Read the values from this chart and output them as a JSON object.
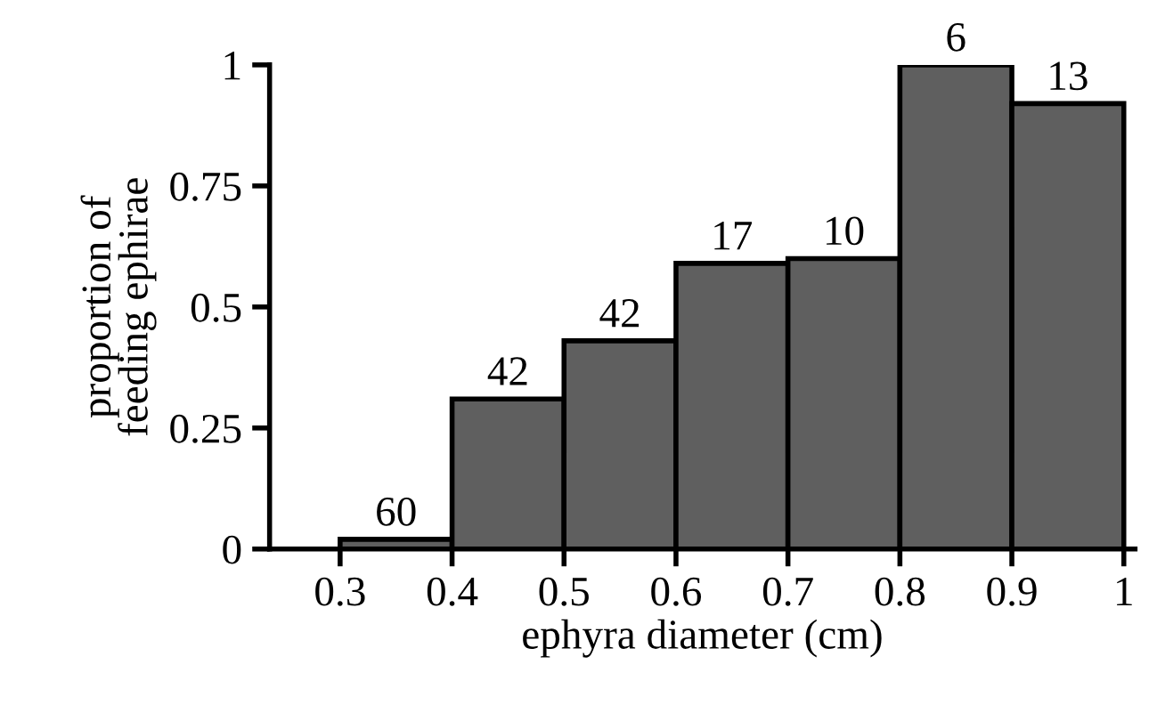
{
  "chart_data": {
    "type": "histogram",
    "xlabel": "ephyra diameter (cm)",
    "ylabel": "proportion of\nfeeding ephirae",
    "bins": [
      0.3,
      0.4,
      0.5,
      0.6,
      0.7,
      0.8,
      0.9,
      1.0
    ],
    "values": [
      0.02,
      0.31,
      0.43,
      0.59,
      0.6,
      1.0,
      0.92
    ],
    "annotations": [
      {
        "text": "60",
        "x": 0.35,
        "y": 0.02
      },
      {
        "text": "42",
        "x": 0.45,
        "y": 0.31
      },
      {
        "text": "42",
        "x": 0.55,
        "y": 0.43
      },
      {
        "text": "17",
        "x": 0.65,
        "y": 0.59
      },
      {
        "text": "10",
        "x": 0.75,
        "y": 0.6
      },
      {
        "text": "6",
        "x": 0.85,
        "y": 1.0
      },
      {
        "text": "13",
        "x": 0.95,
        "y": 0.92
      }
    ],
    "color": "#5f5f5f",
    "xlim": [
      0.237,
      1.01
    ],
    "xticks": [
      0.3,
      0.4,
      0.5,
      0.6,
      0.7,
      0.8,
      0.9,
      1
    ],
    "ylim": [
      0,
      1
    ],
    "yticks": [
      0,
      0.25,
      0.5,
      0.75,
      1
    ],
    "grid": false
  }
}
